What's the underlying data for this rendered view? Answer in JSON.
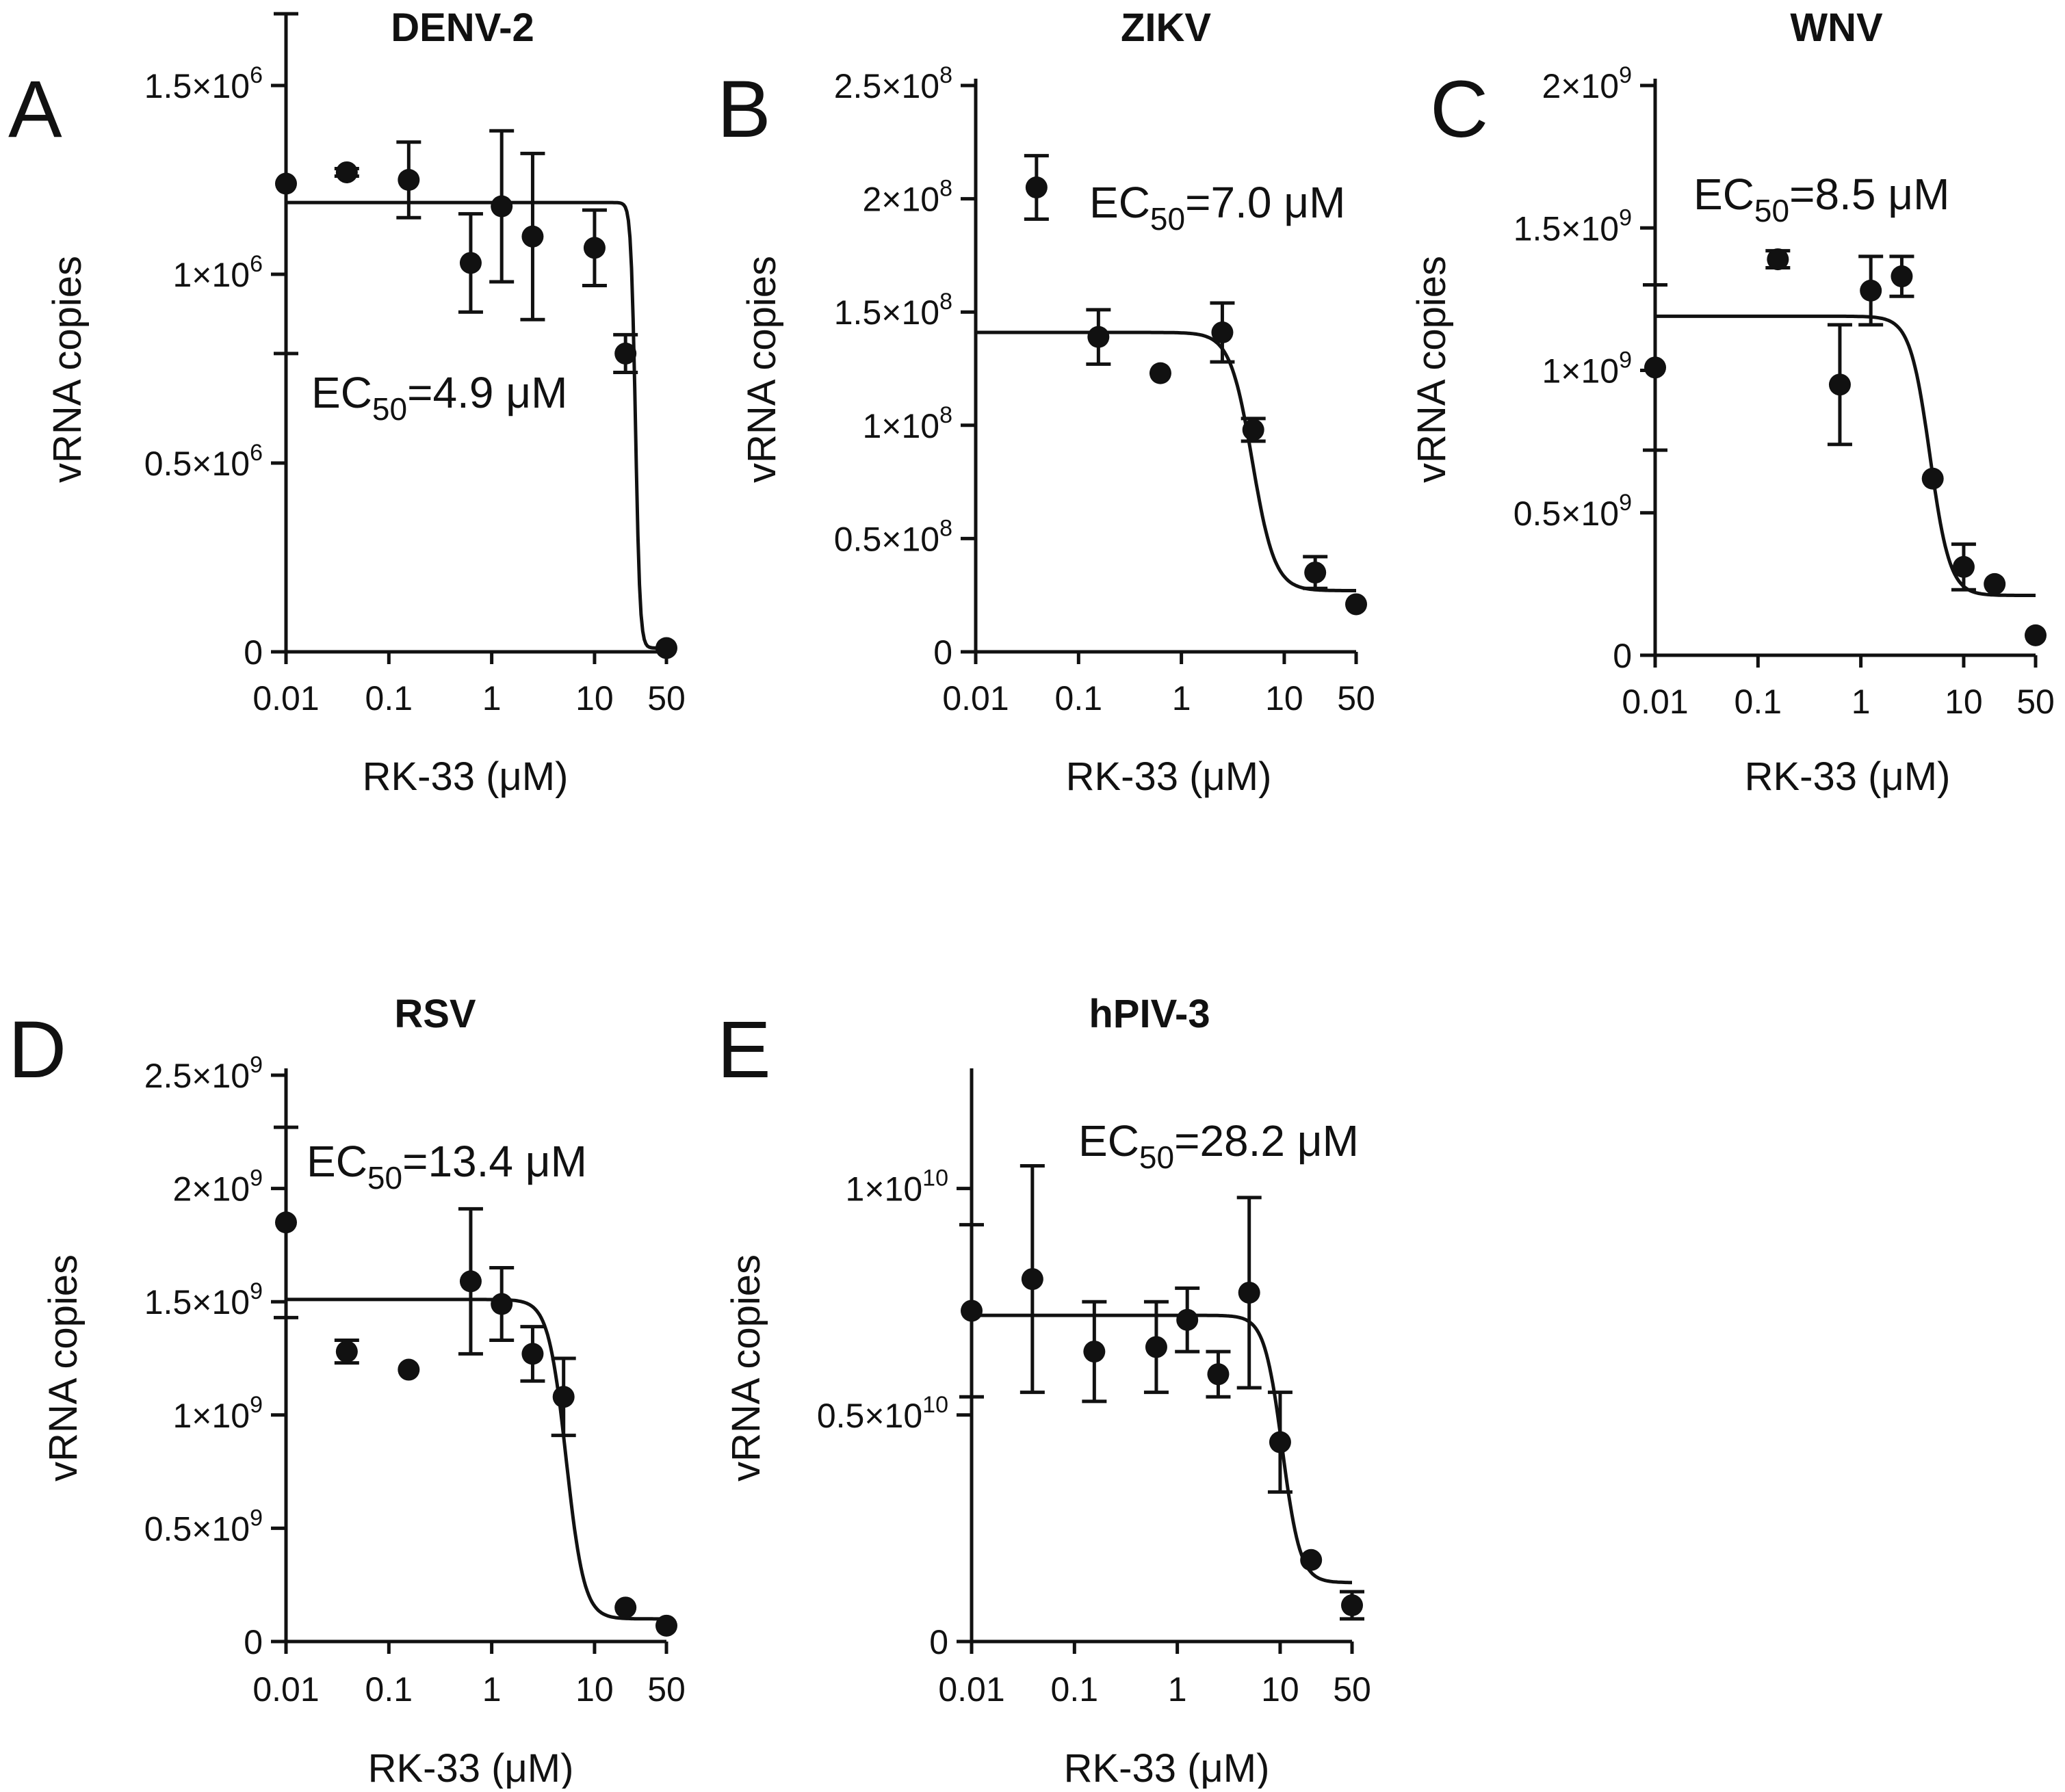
{
  "figure": {
    "colors": {
      "ink": "#111111",
      "background": "#ffffff"
    }
  },
  "chart_data": [
    {
      "panel_letter": "A",
      "type": "scatter",
      "title": "DENV-2",
      "xlabel": "RK-33 (μM)",
      "ylabel": "vRNA copies",
      "x_scale": "log",
      "xlim": [
        0.01,
        50
      ],
      "ylim": [
        0,
        1500000.0
      ],
      "x_ticks": [
        {
          "value": 0.01,
          "label": "0.01"
        },
        {
          "value": 0.1,
          "label": "0.1"
        },
        {
          "value": 1,
          "label": "1"
        },
        {
          "value": 10,
          "label": "10"
        },
        {
          "value": 50,
          "label": "50"
        }
      ],
      "y_ticks": [
        {
          "value": 0,
          "mantissa": "0",
          "exponent": ""
        },
        {
          "value": 500000,
          "mantissa": "0.5×10",
          "exponent": "6"
        },
        {
          "value": 1000000,
          "mantissa": "1×10",
          "exponent": "6"
        },
        {
          "value": 1500000,
          "mantissa": "1.5×10",
          "exponent": "6"
        }
      ],
      "points": [
        {
          "x": 0.01,
          "y": 1240000.0,
          "err": 450000.0
        },
        {
          "x": 0.039,
          "y": 1270000.0,
          "err": 10000.0
        },
        {
          "x": 0.156,
          "y": 1250000.0,
          "err": 100000.0
        },
        {
          "x": 0.625,
          "y": 1030000.0,
          "err": 130000.0
        },
        {
          "x": 1.25,
          "y": 1180000.0,
          "err": 200000.0
        },
        {
          "x": 2.5,
          "y": 1100000.0,
          "err": 220000.0
        },
        {
          "x": 10,
          "y": 1070000.0,
          "err": 100000.0
        },
        {
          "x": 20,
          "y": 790000.0,
          "err": 50000.0
        },
        {
          "x": 50,
          "y": 10000.0,
          "err": 0
        }
      ],
      "fit": {
        "top": 1190000.0,
        "bottom": 10000.0,
        "x_mid": 25,
        "hill": 20
      },
      "annotation": {
        "prefix": "EC",
        "subscript": "50",
        "value": "=4.9 μM"
      }
    },
    {
      "panel_letter": "B",
      "type": "scatter",
      "title": "ZIKV",
      "xlabel": "RK-33 (μM)",
      "ylabel": "vRNA copies",
      "x_scale": "log",
      "xlim": [
        0.01,
        50
      ],
      "ylim": [
        0,
        250000000.0
      ],
      "x_ticks": [
        {
          "value": 0.01,
          "label": "0.01"
        },
        {
          "value": 0.1,
          "label": "0.1"
        },
        {
          "value": 1,
          "label": "1"
        },
        {
          "value": 10,
          "label": "10"
        },
        {
          "value": 50,
          "label": "50"
        }
      ],
      "y_ticks": [
        {
          "value": 0,
          "mantissa": "0",
          "exponent": ""
        },
        {
          "value": 50000000,
          "mantissa": "0.5×10",
          "exponent": "8"
        },
        {
          "value": 100000000,
          "mantissa": "1×10",
          "exponent": "8"
        },
        {
          "value": 150000000,
          "mantissa": "1.5×10",
          "exponent": "8"
        },
        {
          "value": 200000000,
          "mantissa": "2×10",
          "exponent": "8"
        },
        {
          "value": 250000000,
          "mantissa": "2.5×10",
          "exponent": "8"
        }
      ],
      "points": [
        {
          "x": 0.039,
          "y": 205000000.0,
          "err": 14000000.0
        },
        {
          "x": 0.156,
          "y": 139000000.0,
          "err": 12000000.0
        },
        {
          "x": 0.625,
          "y": 123000000.0,
          "err": 0
        },
        {
          "x": 2.5,
          "y": 141000000.0,
          "err": 13000000.0
        },
        {
          "x": 5,
          "y": 98000000.0,
          "err": 5000000.0
        },
        {
          "x": 20,
          "y": 35000000.0,
          "err": 7000000.0
        },
        {
          "x": 50,
          "y": 21000000.0,
          "err": 0
        }
      ],
      "fit": {
        "top": 141000000.0,
        "bottom": 27000000.0,
        "x_mid": 4.9,
        "hill": 4
      },
      "annotation": {
        "prefix": "EC",
        "subscript": "50",
        "value": "=7.0 μM"
      }
    },
    {
      "panel_letter": "C",
      "type": "scatter",
      "title": "WNV",
      "xlabel": "RK-33 (μM)",
      "ylabel": "vRNA copies",
      "x_scale": "log",
      "xlim": [
        0.01,
        50
      ],
      "ylim": [
        0,
        2000000000.0
      ],
      "x_ticks": [
        {
          "value": 0.01,
          "label": "0.01"
        },
        {
          "value": 0.1,
          "label": "0.1"
        },
        {
          "value": 1,
          "label": "1"
        },
        {
          "value": 10,
          "label": "10"
        },
        {
          "value": 50,
          "label": "50"
        }
      ],
      "y_ticks": [
        {
          "value": 0,
          "mantissa": "0",
          "exponent": ""
        },
        {
          "value": 500000000,
          "mantissa": "0.5×10",
          "exponent": "9"
        },
        {
          "value": 1000000000,
          "mantissa": "1×10",
          "exponent": "9"
        },
        {
          "value": 1500000000,
          "mantissa": "1.5×10",
          "exponent": "9"
        },
        {
          "value": 2000000000,
          "mantissa": "2×10",
          "exponent": "9"
        }
      ],
      "points": [
        {
          "x": 0.01,
          "y": 1010000000.0,
          "err": 290000000.0
        },
        {
          "x": 0.156,
          "y": 1390000000.0,
          "err": 30000000.0
        },
        {
          "x": 0.625,
          "y": 950000000.0,
          "err": 210000000.0
        },
        {
          "x": 1.25,
          "y": 1280000000.0,
          "err": 120000000.0
        },
        {
          "x": 2.5,
          "y": 1330000000.0,
          "err": 70000000.0
        },
        {
          "x": 5,
          "y": 620000000.0,
          "err": 0
        },
        {
          "x": 10,
          "y": 310000000.0,
          "err": 80000000.0
        },
        {
          "x": 20,
          "y": 250000000.0,
          "err": 0
        },
        {
          "x": 50,
          "y": 70000000.0,
          "err": 0
        }
      ],
      "fit": {
        "top": 1190000000.0,
        "bottom": 210000000.0,
        "x_mid": 4.7,
        "hill": 4.5
      },
      "annotation": {
        "prefix": "EC",
        "subscript": "50",
        "value": "=8.5 μM"
      }
    },
    {
      "panel_letter": "D",
      "type": "scatter",
      "title": "RSV",
      "xlabel": "RK-33 (μM)",
      "ylabel": "vRNA copies",
      "x_scale": "log",
      "xlim": [
        0.01,
        50
      ],
      "ylim": [
        0,
        2500000000.0
      ],
      "x_ticks": [
        {
          "value": 0.01,
          "label": "0.01"
        },
        {
          "value": 0.1,
          "label": "0.1"
        },
        {
          "value": 1,
          "label": "1"
        },
        {
          "value": 10,
          "label": "10"
        },
        {
          "value": 50,
          "label": "50"
        }
      ],
      "y_ticks": [
        {
          "value": 0,
          "mantissa": "0",
          "exponent": ""
        },
        {
          "value": 500000000,
          "mantissa": "0.5×10",
          "exponent": "9"
        },
        {
          "value": 1000000000,
          "mantissa": "1×10",
          "exponent": "9"
        },
        {
          "value": 1500000000,
          "mantissa": "1.5×10",
          "exponent": "9"
        },
        {
          "value": 2000000000,
          "mantissa": "2×10",
          "exponent": "9"
        },
        {
          "value": 2500000000,
          "mantissa": "2.5×10",
          "exponent": "9"
        }
      ],
      "points": [
        {
          "x": 0.01,
          "y": 1850000000.0,
          "err": 420000000.0
        },
        {
          "x": 0.039,
          "y": 1280000000.0,
          "err": 50000000.0
        },
        {
          "x": 0.156,
          "y": 1200000000.0,
          "err": 0
        },
        {
          "x": 0.625,
          "y": 1590000000.0,
          "err": 320000000.0
        },
        {
          "x": 1.25,
          "y": 1490000000.0,
          "err": 160000000.0
        },
        {
          "x": 2.5,
          "y": 1270000000.0,
          "err": 120000000.0
        },
        {
          "x": 5,
          "y": 1080000000.0,
          "err": 170000000.0
        },
        {
          "x": 20,
          "y": 150000000.0,
          "err": 0
        },
        {
          "x": 50,
          "y": 70000000.0,
          "err": 0
        }
      ],
      "fit": {
        "top": 1510000000.0,
        "bottom": 100000000.0,
        "x_mid": 5.3,
        "hill": 5
      },
      "annotation": {
        "prefix": "EC",
        "subscript": "50",
        "value": "=13.4 μM"
      }
    },
    {
      "panel_letter": "E",
      "type": "scatter",
      "title": "hPIV-3",
      "xlabel": "RK-33 (μM)",
      "ylabel": "vRNA copies",
      "x_scale": "log",
      "xlim": [
        0.01,
        50
      ],
      "ylim": [
        0,
        12500000000.0
      ],
      "x_ticks": [
        {
          "value": 0.01,
          "label": "0.01"
        },
        {
          "value": 0.1,
          "label": "0.1"
        },
        {
          "value": 1,
          "label": "1"
        },
        {
          "value": 10,
          "label": "10"
        },
        {
          "value": 50,
          "label": "50"
        }
      ],
      "y_ticks": [
        {
          "value": 0,
          "mantissa": "0",
          "exponent": ""
        },
        {
          "value": 5000000000,
          "mantissa": "0.5×10",
          "exponent": "10"
        },
        {
          "value": 10000000000,
          "mantissa": "1×10",
          "exponent": "10"
        }
      ],
      "points": [
        {
          "x": 0.01,
          "y": 7300000000.0,
          "err": 1900000000.0
        },
        {
          "x": 0.039,
          "y": 8000000000.0,
          "err": 2500000000.0
        },
        {
          "x": 0.156,
          "y": 6400000000.0,
          "err": 1100000000.0
        },
        {
          "x": 0.625,
          "y": 6500000000.0,
          "err": 1000000000.0
        },
        {
          "x": 1.25,
          "y": 7100000000.0,
          "err": 700000000.0
        },
        {
          "x": 2.5,
          "y": 5900000000.0,
          "err": 500000000.0
        },
        {
          "x": 5,
          "y": 7700000000.0,
          "err": 2100000000.0
        },
        {
          "x": 10,
          "y": 4400000000.0,
          "err": 1100000000.0
        },
        {
          "x": 20,
          "y": 1800000000.0,
          "err": 0
        },
        {
          "x": 50,
          "y": 800000000.0,
          "err": 300000000.0
        }
      ],
      "fit": {
        "top": 7200000000.0,
        "bottom": 1300000000.0,
        "x_mid": 10.5,
        "hill": 5
      },
      "annotation": {
        "prefix": "EC",
        "subscript": "50",
        "value": "=28.2 μM"
      }
    }
  ]
}
